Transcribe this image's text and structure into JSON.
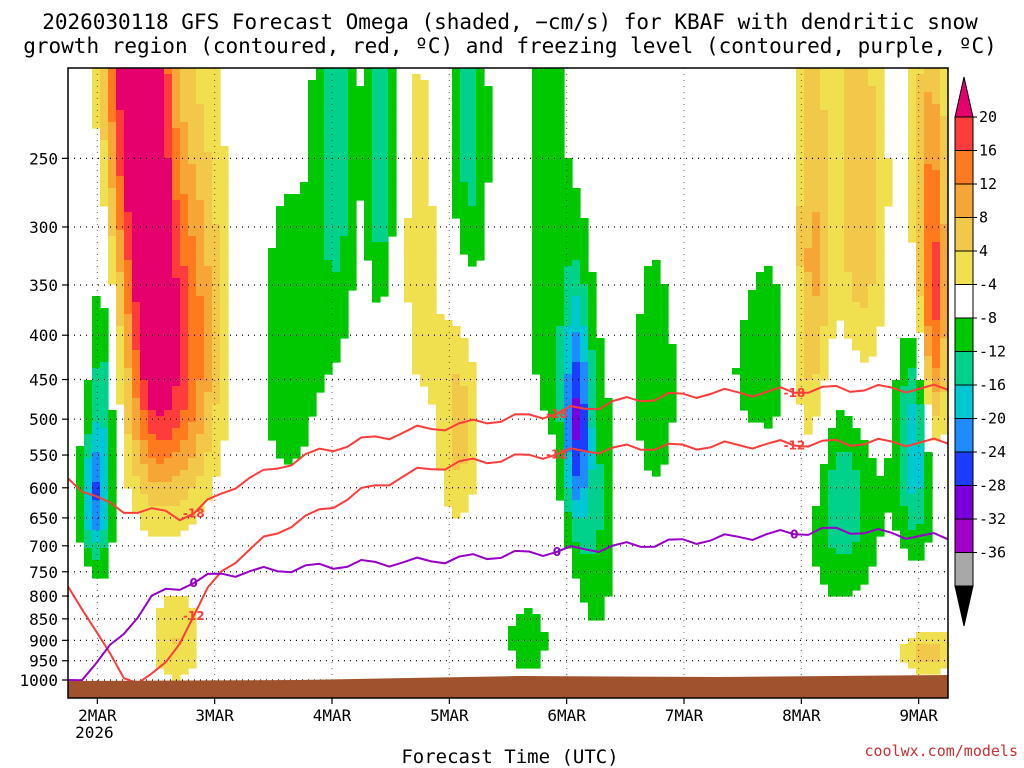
{
  "chart_data": {
    "type": "heatmap",
    "title_line1": "2026030118 GFS Forecast Omega (shaded, −cm/s) for KBAF with dendritic snow",
    "title_line2": "growth region (contoured, red, ºC) and freezing level (contoured, purple, ºC)",
    "xlabel": "Forecast Time (UTC)",
    "credit": "coolwx.com/models",
    "x_ticks": [
      {
        "label": "2MAR",
        "sub": "2026",
        "t": 6
      },
      {
        "label": "3MAR",
        "t": 30
      },
      {
        "label": "4MAR",
        "t": 54
      },
      {
        "label": "5MAR",
        "t": 78
      },
      {
        "label": "6MAR",
        "t": 102
      },
      {
        "label": "7MAR",
        "t": 126
      },
      {
        "label": "8MAR",
        "t": 150
      },
      {
        "label": "9MAR",
        "t": 174
      }
    ],
    "x_range_hours": [
      0,
      180
    ],
    "y_ticks": [
      "250",
      "300",
      "350",
      "400",
      "450",
      "500",
      "550",
      "600",
      "650",
      "700",
      "750",
      "800",
      "850",
      "900",
      "950",
      "1000"
    ],
    "y_range_hpa": [
      200,
      1000
    ],
    "colorbar": {
      "labels": [
        "20",
        "16",
        "12",
        "8",
        "4",
        "-4",
        "-8",
        "-12",
        "-16",
        "-20",
        "-24",
        "-28",
        "-32",
        "-36"
      ],
      "colors": [
        "#ff3c3c",
        "#ff7a1e",
        "#f5a636",
        "#f2c84a",
        "#f0e050",
        "#ffffff",
        "#00c800",
        "#00d28c",
        "#00c8d2",
        "#1e8cff",
        "#1e3cff",
        "#7800dc",
        "#a000c8",
        "#a8a8a8"
      ],
      "top_arrow": "#e6006e",
      "bottom_arrow": "#000000"
    },
    "contours": [
      {
        "label": "-18",
        "color": "#ff3c3c",
        "level_hpa": [
          585,
          600,
          615,
          630,
          638,
          636,
          638,
          642,
          648,
          640,
          625,
          610,
          595,
          585,
          578,
          568,
          560,
          552,
          545,
          540,
          535,
          530,
          525,
          522,
          518,
          514,
          512,
          510,
          508,
          505,
          502,
          500,
          498,
          496,
          494,
          492,
          488,
          486,
          482,
          478,
          476,
          474,
          472,
          470,
          470,
          468,
          466,
          466,
          466,
          466,
          466,
          464,
          464,
          462,
          462,
          461,
          461,
          461,
          461,
          461,
          461,
          461,
          461,
          461
        ]
      },
      {
        "label": "-12",
        "color": "#ff3c3c",
        "level_hpa": [
          780,
          820,
          880,
          940,
          990,
          1000,
          990,
          960,
          900,
          840,
          790,
          750,
          725,
          708,
          690,
          675,
          660,
          650,
          640,
          628,
          616,
          606,
          598,
          590,
          582,
          575,
          570,
          566,
          562,
          560,
          558,
          556,
          554,
          552,
          550,
          548,
          546,
          544,
          542,
          541,
          540,
          539,
          538,
          538,
          538,
          537,
          537,
          536,
          536,
          535,
          535,
          534,
          534,
          533,
          533,
          532,
          532,
          532,
          532,
          532,
          532,
          532,
          532,
          532
        ]
      },
      {
        "label": "0",
        "color": "#9600c8",
        "level_hpa": [
          1000,
          990,
          960,
          920,
          880,
          840,
          805,
          790,
          780,
          770,
          762,
          755,
          752,
          750,
          748,
          746,
          744,
          742,
          740,
          738,
          736,
          734,
          733,
          732,
          731,
          730,
          728,
          726,
          724,
          722,
          720,
          718,
          716,
          714,
          712,
          710,
          708,
          706,
          704,
          702,
          700,
          698,
          696,
          694,
          692,
          690,
          688,
          686,
          684,
          682,
          680,
          678,
          676,
          674,
          672,
          672,
          672,
          674,
          676,
          678,
          680,
          682,
          684,
          686
        ]
      }
    ]
  }
}
